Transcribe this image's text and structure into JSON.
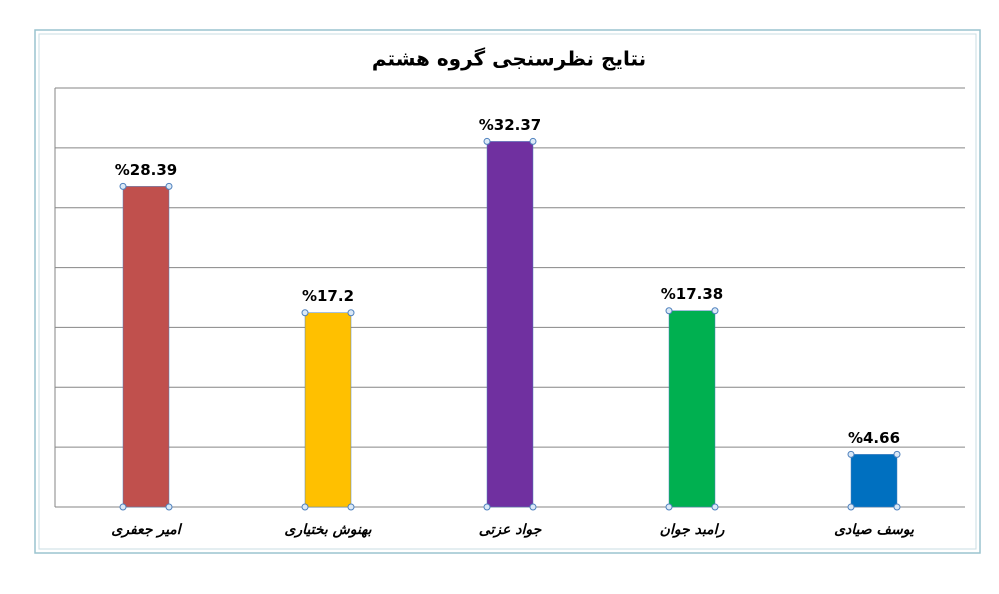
{
  "chart_data": {
    "type": "bar",
    "title": "نتایج نظرسنجی گروه هشتم",
    "categories": [
      "امیر جعفری",
      "بهنوش بختیاری",
      "جواد عزتی",
      "رامبد جوان",
      "یوسف صیادی"
    ],
    "values": [
      28.39,
      17.2,
      32.37,
      17.38,
      4.66
    ],
    "value_labels": [
      "%28.39",
      "%17.2",
      "%32.37",
      "%17.38",
      "%4.66"
    ],
    "colors": [
      "#c0504d",
      "#ffc000",
      "#7030a0",
      "#00b050",
      "#0070c0"
    ],
    "ylim": [
      0,
      37.1
    ],
    "yticks": [
      0,
      5.3,
      10.6,
      15.9,
      21.2,
      26.5,
      31.8,
      37.1
    ],
    "grid": true
  }
}
